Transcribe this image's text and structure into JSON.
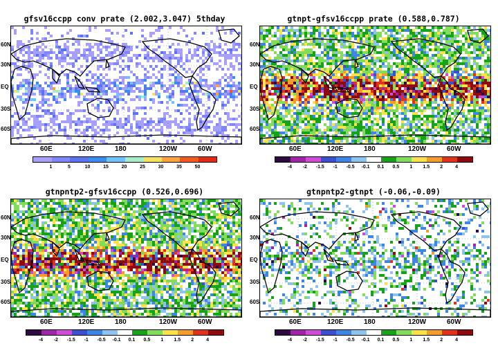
{
  "panels": [
    {
      "id": "p1",
      "title": "gfsv16ccpp  conv  prate  (2.002,3.047)  5thday",
      "type": "sequential",
      "colorbar": {
        "labels": [
          "1",
          "5",
          "10",
          "15",
          "20",
          "25",
          "30",
          "35",
          "50"
        ],
        "colors": [
          "#a8a0ff",
          "#7f87ff",
          "#5a73f0",
          "#3b8cf0",
          "#6fc3ff",
          "#a9ecc8",
          "#f7e35b",
          "#ffa33f",
          "#f45a1e",
          "#e02a14"
        ]
      }
    },
    {
      "id": "p2",
      "title": "gtnpt-gfsv16ccpp  prate  (0.588,0.787)",
      "type": "diverging",
      "colorbar": {
        "labels": [
          "-4",
          "-2",
          "-1.5",
          "-1",
          "-0.5",
          "-0.1",
          "0.1",
          "0.5",
          "1",
          "1.5",
          "2",
          "4"
        ],
        "colors": [
          "#2d0a40",
          "#a123a8",
          "#d24bd6",
          "#3b4fcf",
          "#3d86e6",
          "#8dc3ee",
          "#ffffff",
          "#17a21a",
          "#83dd5a",
          "#ffe24a",
          "#f59c2d",
          "#e2321c",
          "#8c0b10"
        ]
      }
    },
    {
      "id": "p3",
      "title": "gtnpntp2-gfsv16ccpp  (0.526,0.696)",
      "type": "diverging",
      "colorbar": {
        "labels": [
          "-4",
          "-2",
          "-1.5",
          "-1",
          "-0.5",
          "-0.1",
          "0.1",
          "0.5",
          "1",
          "1.5",
          "2",
          "4"
        ],
        "colors": [
          "#2d0a40",
          "#a123a8",
          "#d24bd6",
          "#3b4fcf",
          "#3d86e6",
          "#8dc3ee",
          "#ffffff",
          "#17a21a",
          "#83dd5a",
          "#ffe24a",
          "#f59c2d",
          "#e2321c",
          "#8c0b10"
        ]
      }
    },
    {
      "id": "p4",
      "title": "gtnpntp2-gtnpt  (-0.06,-0.09)",
      "type": "diverging-weak",
      "colorbar": {
        "labels": [
          "-4",
          "-2",
          "-1.5",
          "-1",
          "-0.5",
          "-0.1",
          "0.1",
          "0.5",
          "1",
          "1.5",
          "2",
          "4"
        ],
        "colors": [
          "#2d0a40",
          "#a123a8",
          "#d24bd6",
          "#3b4fcf",
          "#3d86e6",
          "#8dc3ee",
          "#ffffff",
          "#17a21a",
          "#83dd5a",
          "#ffe24a",
          "#f59c2d",
          "#e2321c",
          "#8c0b10"
        ]
      }
    }
  ],
  "axes": {
    "lat_labels": [
      "60N",
      "30N",
      "EQ",
      "30S",
      "60S"
    ],
    "lon_labels": [
      "60E",
      "120E",
      "180",
      "120W",
      "60W"
    ]
  }
}
